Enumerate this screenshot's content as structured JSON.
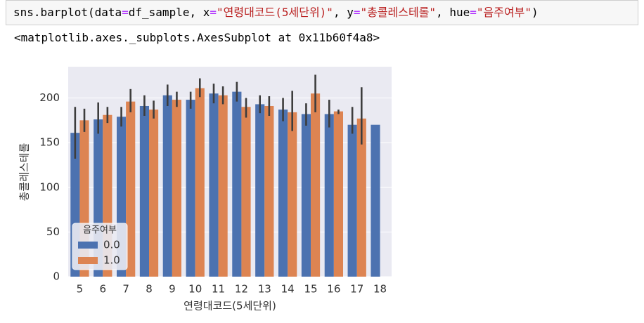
{
  "code_cell": {
    "tokens": [
      {
        "text": "sns.barplot(data",
        "color": "#000000"
      },
      {
        "text": "=",
        "color": "#aa22ff"
      },
      {
        "text": "df_sample, x",
        "color": "#000000"
      },
      {
        "text": "=",
        "color": "#aa22ff"
      },
      {
        "text": "\"연령대코드(5세단위)\"",
        "color": "#ba2121"
      },
      {
        "text": ", y",
        "color": "#000000"
      },
      {
        "text": "=",
        "color": "#aa22ff"
      },
      {
        "text": "\"총콜레스테롤\"",
        "color": "#ba2121"
      },
      {
        "text": ", hue",
        "color": "#000000"
      },
      {
        "text": "=",
        "color": "#aa22ff"
      },
      {
        "text": "\"음주여부\"",
        "color": "#ba2121"
      },
      {
        "text": ")",
        "color": "#000000"
      }
    ]
  },
  "output": {
    "text": "<matplotlib.axes._subplots.AxesSubplot at 0x11b60f4a8>"
  },
  "chart_data": {
    "type": "bar",
    "x_label": "연령대코드(5세단위)",
    "y_label": "총콜레스테롤",
    "categories": [
      "5",
      "6",
      "7",
      "8",
      "9",
      "10",
      "11",
      "12",
      "13",
      "14",
      "15",
      "16",
      "17",
      "18"
    ],
    "legend_title": "음주여부",
    "legend": "lower left",
    "grid": true,
    "ylim": [
      0,
      235
    ],
    "yticks": [
      0,
      50,
      100,
      150,
      200
    ],
    "series": [
      {
        "name": "0.0",
        "color": "#4c72b0",
        "values": [
          161,
          176,
          179,
          191,
          203,
          198,
          205,
          207,
          193,
          187,
          182,
          182,
          170,
          170
        ],
        "ci_low": [
          132,
          160,
          168,
          180,
          191,
          188,
          194,
          196,
          183,
          174,
          169,
          167,
          160,
          null
        ],
        "ci_high": [
          190,
          195,
          190,
          203,
          215,
          207,
          216,
          218,
          203,
          200,
          194,
          198,
          190,
          null
        ]
      },
      {
        "name": "1.0",
        "color": "#dd8452",
        "values": [
          175,
          181,
          196,
          187,
          198,
          211,
          203,
          190,
          191,
          184,
          205,
          185,
          177,
          null
        ],
        "ci_low": [
          162,
          172,
          184,
          177,
          190,
          201,
          193,
          178,
          180,
          163,
          184,
          182,
          148,
          null
        ],
        "ci_high": [
          188,
          190,
          210,
          197,
          207,
          222,
          213,
          200,
          202,
          208,
          226,
          187,
          212,
          null
        ]
      }
    ]
  }
}
